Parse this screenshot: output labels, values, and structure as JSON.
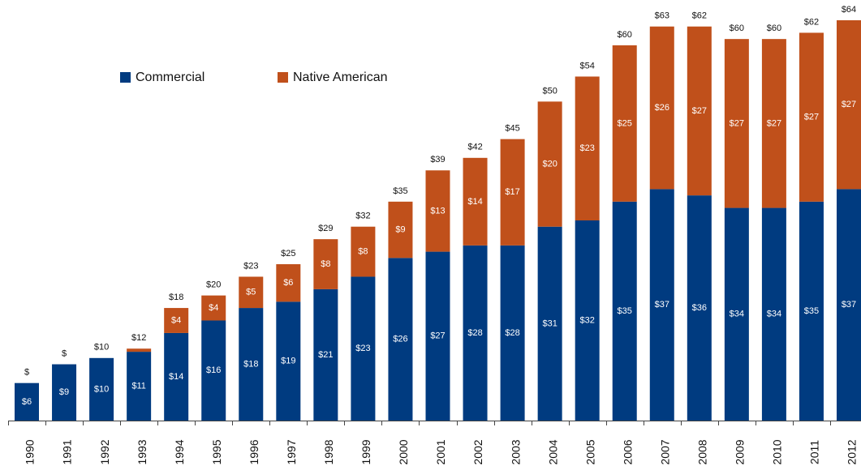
{
  "chart_data": {
    "type": "stacked_bar",
    "categories": [
      "1990",
      "1991",
      "1992",
      "1993",
      "1994",
      "1995",
      "1996",
      "1997",
      "1998",
      "1999",
      "2000",
      "2001",
      "2002",
      "2003",
      "2004",
      "2005",
      "2006",
      "2007",
      "2008",
      "2009",
      "2010",
      "2011",
      "2012"
    ],
    "series": [
      {
        "name": "Commercial",
        "color": "#003b80",
        "values": [
          6,
          9,
          10,
          11,
          14,
          16,
          18,
          19,
          21,
          23,
          26,
          27,
          28,
          28,
          31,
          32,
          35,
          37,
          36,
          34,
          34,
          35,
          37
        ],
        "value_labels": [
          "$6",
          "$9",
          "$10",
          "$11",
          "$14",
          "$16",
          "$18",
          "$19",
          "$21",
          "$23",
          "$26",
          "$27",
          "$28",
          "$28",
          "$31",
          "$32",
          "$35",
          "$37",
          "$36",
          "$34",
          "$34",
          "$35",
          "$37"
        ]
      },
      {
        "name": "Native American",
        "color": "#c0501b",
        "values": [
          0,
          0,
          0,
          0.5,
          4,
          4,
          5,
          6,
          8,
          8,
          9,
          13,
          14,
          17,
          20,
          23,
          25,
          26,
          27,
          27,
          27,
          27,
          27
        ],
        "value_labels": [
          null,
          null,
          null,
          null,
          "$4",
          "$4",
          "$5",
          "$6",
          "$8",
          "$8",
          "$9",
          "$13",
          "$14",
          "$17",
          "$20",
          "$23",
          "$25",
          "$26",
          "$27",
          "$27",
          "$27",
          "$27",
          "$27"
        ]
      }
    ],
    "totals": {
      "values": [
        6,
        9,
        10,
        12,
        18,
        20,
        23,
        25,
        29,
        32,
        35,
        39,
        42,
        45,
        50,
        54,
        60,
        63,
        62,
        60,
        60,
        62,
        64
      ],
      "value_labels": [
        "$",
        "$",
        "$10",
        "$12",
        "$18",
        "$20",
        "$23",
        "$25",
        "$29",
        "$32",
        "$35",
        "$39",
        "$42",
        "$45",
        "$50",
        "$54",
        "$60",
        "$63",
        "$62",
        "$60",
        "$60",
        "$62",
        "$64"
      ]
    },
    "ylim": [
      0,
      64
    ]
  }
}
